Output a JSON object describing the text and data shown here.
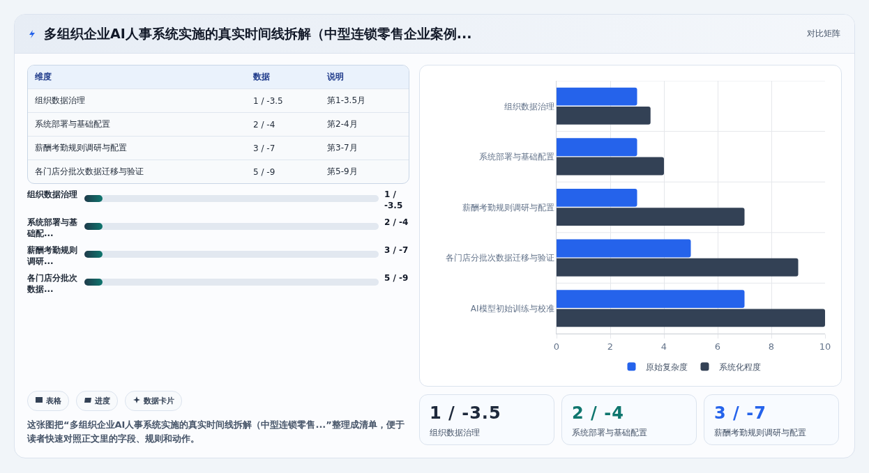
{
  "chart_data": [
    {
      "type": "other",
      "title": "多组织企业AI人事系统实施的真实时间线拆解（中型连锁零售企业案例...",
      "annotations": [
        "对比矩阵"
      ]
    },
    {
      "type": "other",
      "annotations": [
        "维度",
        "数据",
        "说明",
        "组织数据治理",
        "1 / -3.5",
        "第1-3.5月",
        "系统部署与基础配置",
        "2 / -4",
        "第2-4月",
        "薪酬考勤规则调研与配置",
        "3 / -7",
        "第3-7月",
        "各门店分批次数据迁移与验证",
        "5 / -9",
        "第5-9月"
      ]
    },
    {
      "type": "other",
      "annotations": [
        "组织数据治理",
        "1 / -3.5",
        "系统部署与基础配...",
        "2 / -4",
        "薪酬考勤规则调研...",
        "3 / -7",
        "各门店分批次数据...",
        "5 / -9"
      ]
    },
    {
      "type": "other",
      "annotations": [
        "表格",
        "进度",
        "数据卡片",
        "这张图把“多组织企业AI人事系统实施的真实时间线拆解（中型连锁零售...”整理成清单，便于读者快速对照正文里的字段、规则和动作。"
      ]
    },
    {
      "type": "bar",
      "orientation": "horizontal",
      "categories": [
        "组织数据治理",
        "系统部署与基础配置",
        "薪酬考勤规则调研与配置",
        "各门店分批次数据迁移与验证",
        "AI模型初始训练与校准"
      ],
      "series": [
        {
          "name": "原始复杂度",
          "color": "#2563eb",
          "values": [
            3,
            3,
            3,
            5,
            7
          ]
        },
        {
          "name": "系统化程度",
          "color": "#334155",
          "values": [
            3.5,
            4,
            7,
            9,
            10
          ]
        }
      ],
      "xlim": [
        0,
        10
      ],
      "xticks": [
        0,
        2,
        4,
        6,
        8,
        10
      ],
      "grid": true,
      "legend": "bottom"
    },
    {
      "type": "other",
      "annotations": [
        "1 / -3.5",
        "组织数据治理",
        "2 / -4",
        "系统部署与基础配置",
        "3 / -7",
        "薪酬考勤规则调研与配置"
      ]
    }
  ]
}
